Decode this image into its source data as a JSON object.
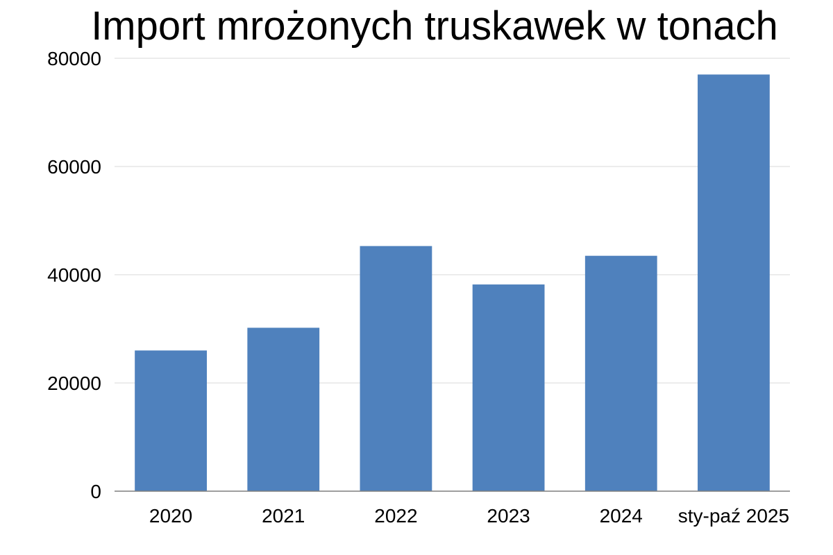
{
  "chart_data": {
    "type": "bar",
    "title": "Import mrożonych truskawek w tonach",
    "xlabel": "",
    "ylabel": "",
    "categories": [
      "2020",
      "2021",
      "2022",
      "2023",
      "2024",
      "sty-paź 2025"
    ],
    "values": [
      26000,
      30200,
      45300,
      38200,
      43500,
      77000
    ],
    "ylim": [
      0,
      80000
    ],
    "yticks": [
      "0",
      "20000",
      "40000",
      "60000",
      "80000"
    ],
    "grid": true,
    "legend": "none",
    "bar_color": "#4f81bd",
    "grid_color": "#d9d9d9",
    "axis_color": "#7f7f7f"
  }
}
